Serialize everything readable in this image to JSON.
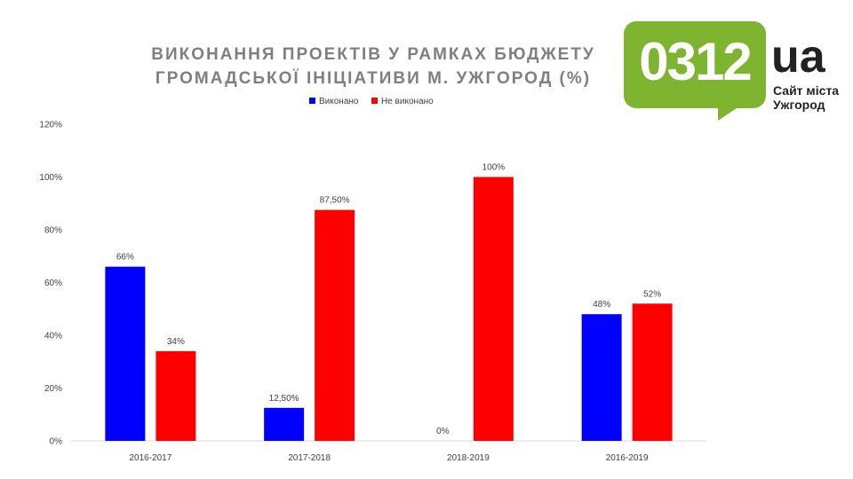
{
  "chart_data": {
    "type": "bar",
    "title_lines": [
      "ВИКОНАННЯ ПРОЕКТІВ У РАМКАХ БЮДЖЕТУ",
      "ГРОМАДСЬКОЇ ІНІЦІАТИВИ М. УЖГОРОД (%)"
    ],
    "categories": [
      "2016-2017",
      "2017-2018",
      "2018-2019",
      "2016-2019"
    ],
    "series": [
      {
        "name": "Виконано",
        "color": "#0000ff",
        "values": [
          66,
          12.5,
          0,
          48
        ],
        "labels": [
          "66%",
          "12,50%",
          "0%",
          "48%"
        ]
      },
      {
        "name": "Не виконано",
        "color": "#ff0000",
        "values": [
          34,
          87.5,
          100,
          52
        ],
        "labels": [
          "34%",
          "87,50%",
          "100%",
          "52%"
        ]
      }
    ],
    "ylim": [
      0,
      120
    ],
    "yticks": [
      0,
      20,
      40,
      60,
      80,
      100,
      120
    ],
    "ytick_labels": [
      "0%",
      "20%",
      "40%",
      "60%",
      "80%",
      "100%",
      "120%"
    ],
    "legend_position": "top",
    "grid": false
  },
  "logo": {
    "number": "0312",
    "ua": "ua",
    "subtitle_lines": [
      "Сайт міста",
      "Ужгород"
    ],
    "color": "#7fb431"
  }
}
